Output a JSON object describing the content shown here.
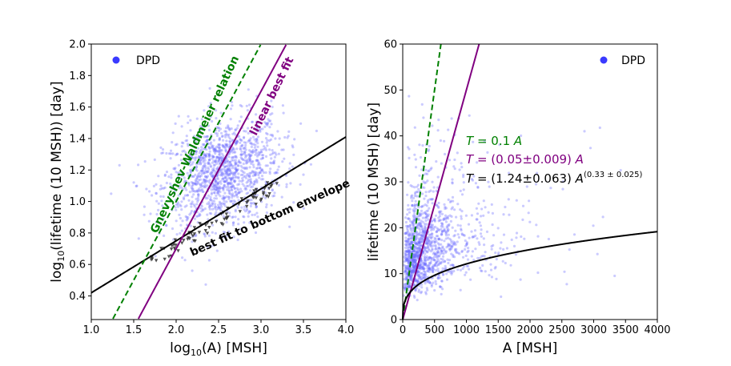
{
  "chart_data": [
    {
      "type": "scatter",
      "xlabel": "log10(A) [MSH]",
      "ylabel": "log10(lifetime (10 MSH)) [day]",
      "xlim": [
        1.0,
        4.0
      ],
      "ylim": [
        0.25,
        2.0
      ],
      "xticks": [
        "1.0",
        "1.5",
        "2.0",
        "2.5",
        "3.0",
        "3.5",
        "4.0"
      ],
      "yticks": [
        "0.4",
        "0.6",
        "0.8",
        "1.0",
        "1.2",
        "1.4",
        "1.6",
        "1.8",
        "2.0"
      ],
      "legend": {
        "label": "DPD",
        "placement": "top-left"
      },
      "grid": false,
      "series": [
        {
          "name": "DPD",
          "kind": "scatter",
          "color": "#6b6bff",
          "center": [
            2.55,
            1.18
          ],
          "spread": [
            0.35,
            0.17
          ]
        },
        {
          "kind": "triangles",
          "color": "#333333",
          "x_range": [
            1.7,
            3.2
          ],
          "y_offset_below_cloud": 0.05
        }
      ],
      "lines": [
        {
          "label": "best fit to bottom envelope",
          "color": "#000000",
          "style": "solid",
          "slope": 0.33,
          "intercept": 0.09
        },
        {
          "label": "linear best fit",
          "color": "#800080",
          "style": "solid",
          "slope": 1.0,
          "intercept": -1.3
        },
        {
          "label": "Gnevyshev-Waldmeier relation",
          "color": "#008000",
          "style": "dashed",
          "slope": 1.0,
          "intercept": -1.0
        }
      ]
    },
    {
      "type": "scatter",
      "xlabel": "A [MSH]",
      "ylabel": "lifetime (10 MSH) [day]",
      "xlim": [
        0,
        4000
      ],
      "ylim": [
        0,
        60
      ],
      "xticks": [
        "0",
        "500",
        "1000",
        "1500",
        "2000",
        "2500",
        "3000",
        "3500",
        "4000"
      ],
      "yticks": [
        "0",
        "10",
        "20",
        "30",
        "40",
        "50",
        "60"
      ],
      "legend": {
        "label": "DPD",
        "placement": "top-right"
      },
      "grid": false,
      "series": [
        {
          "name": "DPD",
          "kind": "scatter",
          "color": "#6b6bff"
        }
      ],
      "lines": [
        {
          "label": "T = 0.1 A",
          "color": "#008000",
          "style": "dashed",
          "a": 0.1,
          "b": 1.0
        },
        {
          "label": "T = (0.05±0.009) A",
          "color": "#800080",
          "style": "solid",
          "a": 0.05,
          "b": 1.0
        },
        {
          "label": "T = (1.24±0.063) A^(0.33 ± 0.025)",
          "color": "#000000",
          "style": "solid",
          "a": 1.24,
          "b": 0.33
        }
      ]
    }
  ],
  "text": {
    "left_legend": "DPD",
    "right_legend": "DPD",
    "left_xlabel_main": "log",
    "left_xlabel_sub": "10",
    "left_xlabel_rest": "(A) [MSH]",
    "left_ylabel_main": "log",
    "left_ylabel_sub": "10",
    "left_ylabel_rest": "(lifetime (10 MSH)) [day]",
    "right_xlabel": "A [MSH]",
    "right_ylabel": "lifetime (10 MSH) [day]",
    "annot_gw": "Gnevyshev-Waldmeier relation",
    "annot_linear": "linear best fit",
    "annot_envelope": "best fit to bottom envelope",
    "eq1_T": "T",
    "eq1_rest": " = 0.1 ",
    "eq1_A": "A",
    "eq2_T": "T",
    "eq2_rest": " = (0.05±0.009) ",
    "eq2_A": "A",
    "eq3_T": "T",
    "eq3_rest": " = (1.24±0.063) ",
    "eq3_A": "A",
    "eq3_exp": "(0.33 ± 0.025)"
  }
}
